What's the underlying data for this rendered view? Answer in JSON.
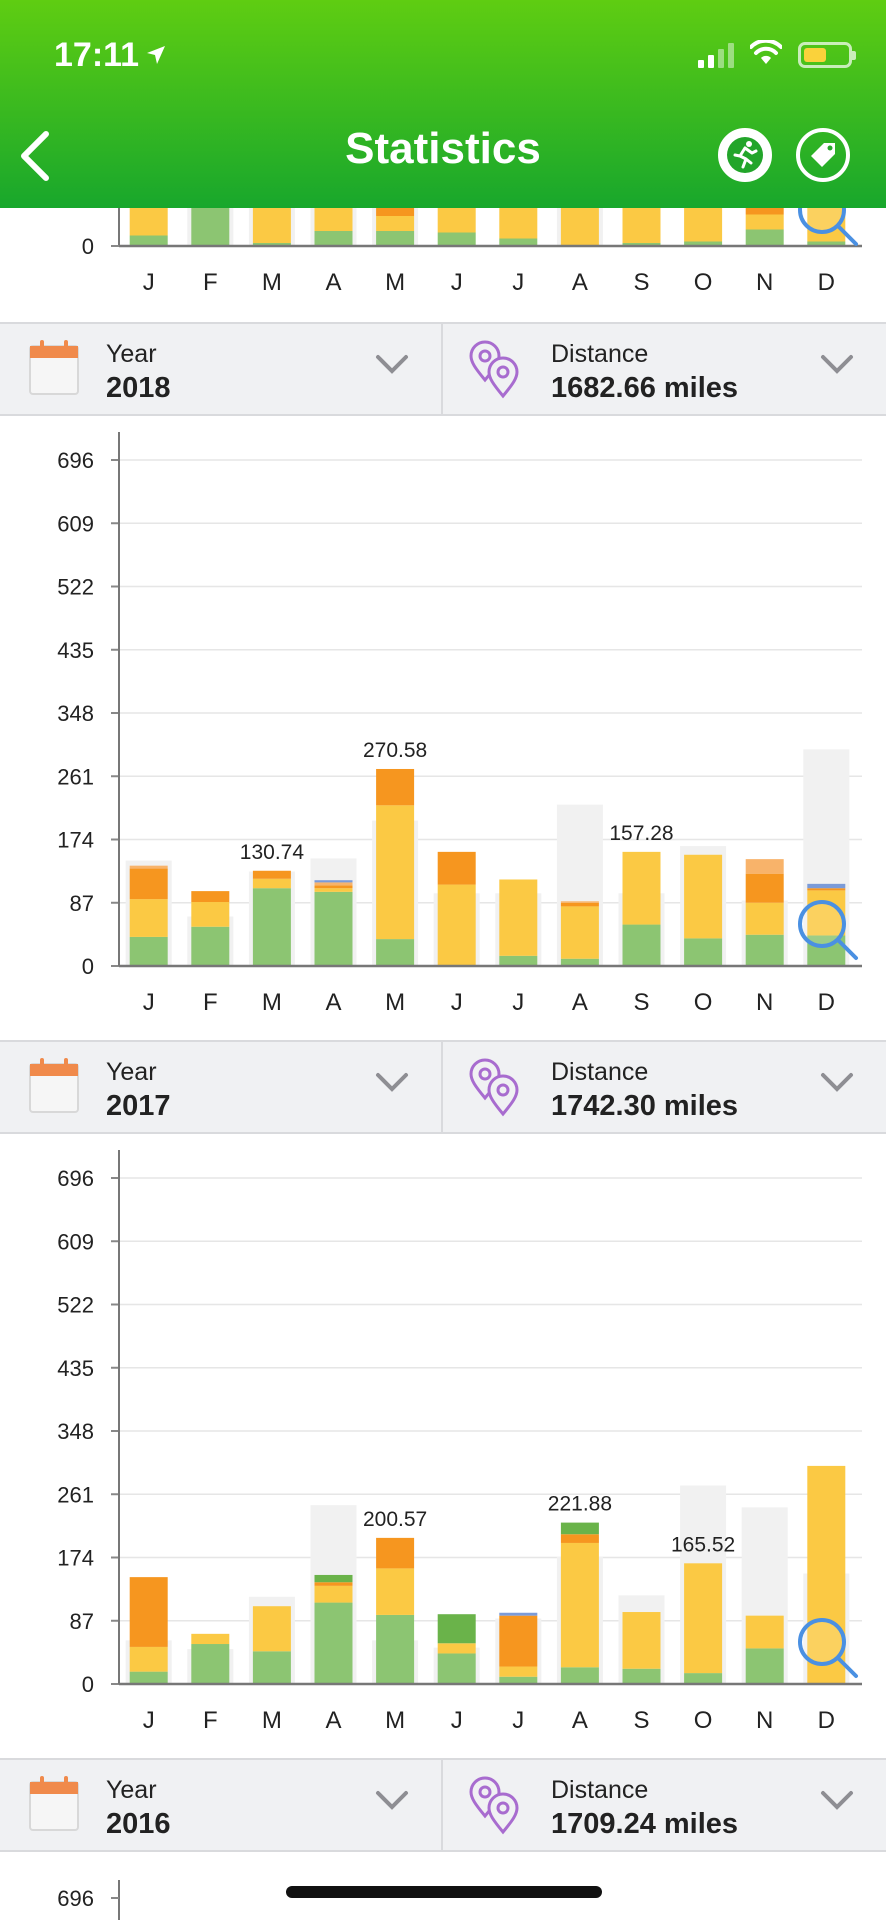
{
  "status_bar": {
    "time": "17:11"
  },
  "nav": {
    "title": "Statistics"
  },
  "colors": {
    "header_top": "#5fcd12",
    "header_bottom": "#18a72c",
    "green_light": "#8cc572",
    "green_dark": "#6ab34a",
    "yellow": "#fbc944",
    "orange": "#f6961f",
    "orange_light": "#f8b36a",
    "blue": "#7b9bd8",
    "ghost": "#f1f1f1",
    "magnifier": "#4a90e2"
  },
  "chart_data": [
    {
      "type": "bar",
      "partial": true,
      "categories": [
        "J",
        "F",
        "M",
        "A",
        "M",
        "J",
        "J",
        "A",
        "S",
        "O",
        "N",
        "D"
      ],
      "ytick_labels": [
        "0"
      ],
      "stacks": [
        [
          {
            "v": 14,
            "c": "green_light"
          },
          {
            "v": 40,
            "c": "yellow"
          }
        ],
        [
          {
            "v": 60,
            "c": "green_light"
          }
        ],
        [
          {
            "v": 4,
            "c": "green_light"
          },
          {
            "v": 50,
            "c": "yellow"
          }
        ],
        [
          {
            "v": 20,
            "c": "green_light"
          },
          {
            "v": 34,
            "c": "yellow"
          }
        ],
        [
          {
            "v": 20,
            "c": "green_light"
          },
          {
            "v": 20,
            "c": "yellow"
          },
          {
            "v": 20,
            "c": "orange"
          }
        ],
        [
          {
            "v": 18,
            "c": "green_light"
          },
          {
            "v": 36,
            "c": "yellow"
          }
        ],
        [
          {
            "v": 10,
            "c": "green_light"
          },
          {
            "v": 44,
            "c": "yellow"
          }
        ],
        [
          {
            "v": 54,
            "c": "yellow"
          }
        ],
        [
          {
            "v": 4,
            "c": "green_light"
          },
          {
            "v": 50,
            "c": "yellow"
          }
        ],
        [
          {
            "v": 6,
            "c": "green_light"
          },
          {
            "v": 48,
            "c": "yellow"
          }
        ],
        [
          {
            "v": 22,
            "c": "green_light"
          },
          {
            "v": 20,
            "c": "yellow"
          },
          {
            "v": 20,
            "c": "orange"
          }
        ],
        [
          {
            "v": 6,
            "c": "green_light"
          },
          {
            "v": 48,
            "c": "yellow"
          }
        ]
      ],
      "ghost": [
        0,
        60,
        60,
        60,
        60,
        0,
        0,
        60,
        0,
        0,
        0,
        0
      ],
      "labels": []
    },
    {
      "type": "bar",
      "year": "2018",
      "categories": [
        "J",
        "F",
        "M",
        "A",
        "M",
        "J",
        "J",
        "A",
        "S",
        "O",
        "N",
        "D"
      ],
      "ytick_labels": [
        "0",
        "87",
        "174",
        "261",
        "348",
        "435",
        "522",
        "609",
        "696"
      ],
      "ylim": [
        0,
        696
      ],
      "stacks": [
        [
          {
            "v": 40,
            "c": "green_light"
          },
          {
            "v": 52,
            "c": "yellow"
          },
          {
            "v": 42,
            "c": "orange"
          },
          {
            "v": 4,
            "c": "orange_light"
          }
        ],
        [
          {
            "v": 54,
            "c": "green_light"
          },
          {
            "v": 34,
            "c": "yellow"
          },
          {
            "v": 15,
            "c": "orange"
          }
        ],
        [
          {
            "v": 107,
            "c": "green_light"
          },
          {
            "v": 13,
            "c": "yellow"
          },
          {
            "v": 11,
            "c": "orange"
          }
        ],
        [
          {
            "v": 102,
            "c": "green_light"
          },
          {
            "v": 5,
            "c": "yellow"
          },
          {
            "v": 4,
            "c": "orange"
          },
          {
            "v": 4,
            "c": "orange_light"
          },
          {
            "v": 3,
            "c": "blue"
          }
        ],
        [
          {
            "v": 37,
            "c": "green_light"
          },
          {
            "v": 184,
            "c": "yellow"
          },
          {
            "v": 50,
            "c": "orange"
          }
        ],
        [
          {
            "v": 112,
            "c": "yellow"
          },
          {
            "v": 45,
            "c": "orange"
          }
        ],
        [
          {
            "v": 14,
            "c": "green_light"
          },
          {
            "v": 105,
            "c": "yellow"
          }
        ],
        [
          {
            "v": 10,
            "c": "green_light"
          },
          {
            "v": 72,
            "c": "yellow"
          },
          {
            "v": 5,
            "c": "orange"
          },
          {
            "v": 2,
            "c": "orange_light"
          }
        ],
        [
          {
            "v": 57,
            "c": "green_light"
          },
          {
            "v": 100,
            "c": "yellow"
          }
        ],
        [
          {
            "v": 38,
            "c": "green_light"
          },
          {
            "v": 115,
            "c": "yellow"
          }
        ],
        [
          {
            "v": 43,
            "c": "green_light"
          },
          {
            "v": 44,
            "c": "yellow"
          },
          {
            "v": 40,
            "c": "orange"
          },
          {
            "v": 20,
            "c": "orange_light"
          }
        ],
        [
          {
            "v": 42,
            "c": "green_light"
          },
          {
            "v": 62,
            "c": "yellow"
          },
          {
            "v": 3,
            "c": "orange"
          },
          {
            "v": 6,
            "c": "blue"
          }
        ]
      ],
      "ghost": [
        145,
        68,
        130,
        148,
        200,
        100,
        100,
        222,
        100,
        165,
        90,
        298
      ],
      "labels": [
        {
          "index": 2,
          "text": "130.74"
        },
        {
          "index": 4,
          "text": "270.58"
        },
        {
          "index": 8,
          "text": "157.28"
        }
      ]
    },
    {
      "type": "bar",
      "year": "2017",
      "categories": [
        "J",
        "F",
        "M",
        "A",
        "M",
        "J",
        "J",
        "A",
        "S",
        "O",
        "N",
        "D"
      ],
      "ytick_labels": [
        "0",
        "87",
        "174",
        "261",
        "348",
        "435",
        "522",
        "609",
        "696"
      ],
      "ylim": [
        0,
        696
      ],
      "stacks": [
        [
          {
            "v": 17,
            "c": "green_light"
          },
          {
            "v": 34,
            "c": "yellow"
          },
          {
            "v": 96,
            "c": "orange"
          }
        ],
        [
          {
            "v": 55,
            "c": "green_light"
          },
          {
            "v": 14,
            "c": "yellow"
          }
        ],
        [
          {
            "v": 45,
            "c": "green_light"
          },
          {
            "v": 62,
            "c": "yellow"
          }
        ],
        [
          {
            "v": 112,
            "c": "green_light"
          },
          {
            "v": 23,
            "c": "yellow"
          },
          {
            "v": 5,
            "c": "orange"
          },
          {
            "v": 10,
            "c": "green_dark"
          }
        ],
        [
          {
            "v": 95,
            "c": "green_light"
          },
          {
            "v": 64,
            "c": "yellow"
          },
          {
            "v": 42,
            "c": "orange"
          }
        ],
        [
          {
            "v": 42,
            "c": "green_light"
          },
          {
            "v": 14,
            "c": "yellow"
          },
          {
            "v": 40,
            "c": "green_dark"
          }
        ],
        [
          {
            "v": 10,
            "c": "green_light"
          },
          {
            "v": 14,
            "c": "yellow"
          },
          {
            "v": 70,
            "c": "orange"
          },
          {
            "v": 4,
            "c": "blue"
          }
        ],
        [
          {
            "v": 23,
            "c": "green_light"
          },
          {
            "v": 171,
            "c": "yellow"
          },
          {
            "v": 12,
            "c": "orange"
          },
          {
            "v": 16,
            "c": "green_dark"
          }
        ],
        [
          {
            "v": 21,
            "c": "green_light"
          },
          {
            "v": 78,
            "c": "yellow"
          }
        ],
        [
          {
            "v": 15,
            "c": "green_light"
          },
          {
            "v": 151,
            "c": "yellow"
          }
        ],
        [
          {
            "v": 49,
            "c": "green_light"
          },
          {
            "v": 45,
            "c": "yellow"
          }
        ],
        [
          {
            "v": 300,
            "c": "yellow"
          }
        ]
      ],
      "ghost": [
        60,
        48,
        120,
        246,
        60,
        50,
        90,
        175,
        122,
        273,
        243,
        152
      ],
      "labels": [
        {
          "index": 4,
          "text": "200.57"
        },
        {
          "index": 7,
          "text": "221.88"
        },
        {
          "index": 9,
          "text": "165.52"
        }
      ]
    },
    {
      "type": "bar",
      "year": "2016",
      "partial": true,
      "ytick_labels": [
        "696"
      ]
    }
  ],
  "selectors": [
    {
      "year_label": "Year",
      "year_value": "2018",
      "distance_label": "Distance",
      "distance_value": "1682.66",
      "distance_unit": "miles"
    },
    {
      "year_label": "Year",
      "year_value": "2017",
      "distance_label": "Distance",
      "distance_value": "1742.30",
      "distance_unit": "miles"
    },
    {
      "year_label": "Year",
      "year_value": "2016",
      "distance_label": "Distance",
      "distance_value": "1709.24",
      "distance_unit": "miles"
    }
  ]
}
